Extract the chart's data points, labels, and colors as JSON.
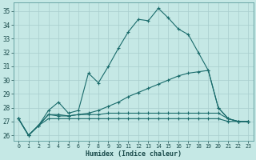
{
  "xlabel": "Humidex (Indice chaleur)",
  "xlim": [
    -0.5,
    23.5
  ],
  "ylim": [
    25.6,
    35.6
  ],
  "yticks": [
    26,
    27,
    28,
    29,
    30,
    31,
    32,
    33,
    34,
    35
  ],
  "xticks": [
    0,
    1,
    2,
    3,
    4,
    5,
    6,
    7,
    8,
    9,
    10,
    11,
    12,
    13,
    14,
    15,
    16,
    17,
    18,
    19,
    20,
    21,
    22,
    23
  ],
  "bg_color": "#c5e8e5",
  "line_color": "#1a6b6b",
  "grid_color": "#a8cece",
  "line1_y": [
    27.2,
    26.0,
    26.7,
    27.8,
    28.4,
    27.6,
    27.8,
    30.5,
    29.8,
    31.0,
    32.3,
    33.5,
    34.4,
    34.3,
    35.2,
    34.5,
    33.7,
    33.3,
    32.0,
    30.7,
    28.0,
    27.2,
    27.0,
    27.0
  ],
  "line2_y": [
    27.2,
    26.0,
    26.7,
    27.5,
    27.4,
    27.4,
    27.5,
    27.6,
    27.8,
    28.1,
    28.4,
    28.8,
    29.1,
    29.4,
    29.7,
    30.0,
    30.3,
    30.5,
    30.6,
    30.7,
    28.0,
    27.2,
    27.0,
    27.0
  ],
  "line3_y": [
    27.2,
    26.0,
    26.7,
    27.5,
    27.5,
    27.4,
    27.5,
    27.5,
    27.5,
    27.6,
    27.6,
    27.6,
    27.6,
    27.6,
    27.6,
    27.6,
    27.6,
    27.6,
    27.6,
    27.6,
    27.6,
    27.2,
    27.0,
    27.0
  ],
  "line4_y": [
    27.2,
    26.0,
    26.7,
    27.2,
    27.2,
    27.2,
    27.2,
    27.2,
    27.2,
    27.2,
    27.2,
    27.2,
    27.2,
    27.2,
    27.2,
    27.2,
    27.2,
    27.2,
    27.2,
    27.2,
    27.2,
    27.0,
    27.0,
    27.0
  ]
}
